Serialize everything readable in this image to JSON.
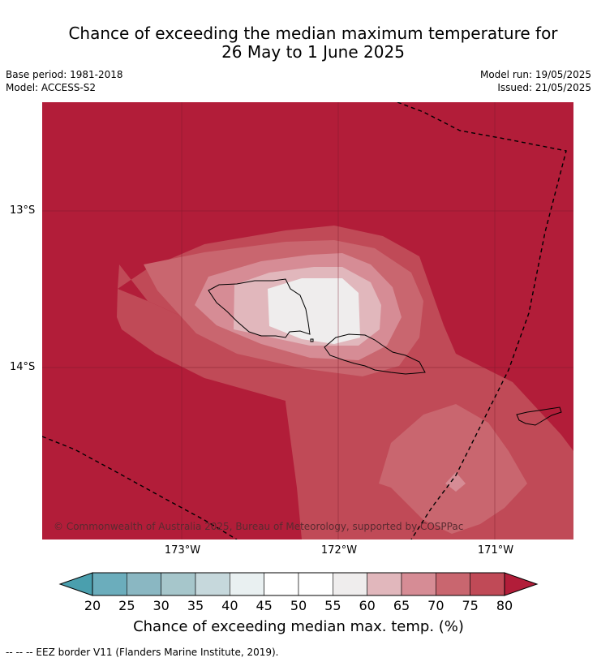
{
  "title_line1": "Chance of exceeding the median maximum temperature for",
  "title_line2": "26 May to 1 June 2025",
  "base_period": "Base period: 1981-2018",
  "model": "Model: ACCESS-S2",
  "model_run": "Model run: 19/05/2025",
  "issued": "Issued: 21/05/2025",
  "lat_labels": [
    "13°S",
    "14°S"
  ],
  "lon_labels": [
    "173°W",
    "172°W",
    "171°W"
  ],
  "copyright": "© Commonwealth of Australia 2025, Bureau of Meteorology, supported by COSPPac",
  "colorbar": {
    "ticks": [
      "20",
      "25",
      "30",
      "35",
      "40",
      "45",
      "50",
      "55",
      "60",
      "65",
      "70",
      "75",
      "80"
    ],
    "label": "Chance of exceeding median max. temp. (%)",
    "colors": {
      "below": "#4a9fae",
      "c20": "#6badbc",
      "c25": "#8ab7c2",
      "c30": "#a6c6cb",
      "c35": "#c6d8dc",
      "c40": "#e9f0f1",
      "c45": "#ffffff",
      "c50": "#ffffff",
      "c55": "#efeded",
      "c60": "#e1b7bc",
      "c65": "#d68c95",
      "c70": "#c9666f",
      "c75": "#c04a57",
      "above": "#b21d39"
    }
  },
  "footnote": "--  --  -- EEZ border V11 (Flanders Marine Institute, 2019)."
}
